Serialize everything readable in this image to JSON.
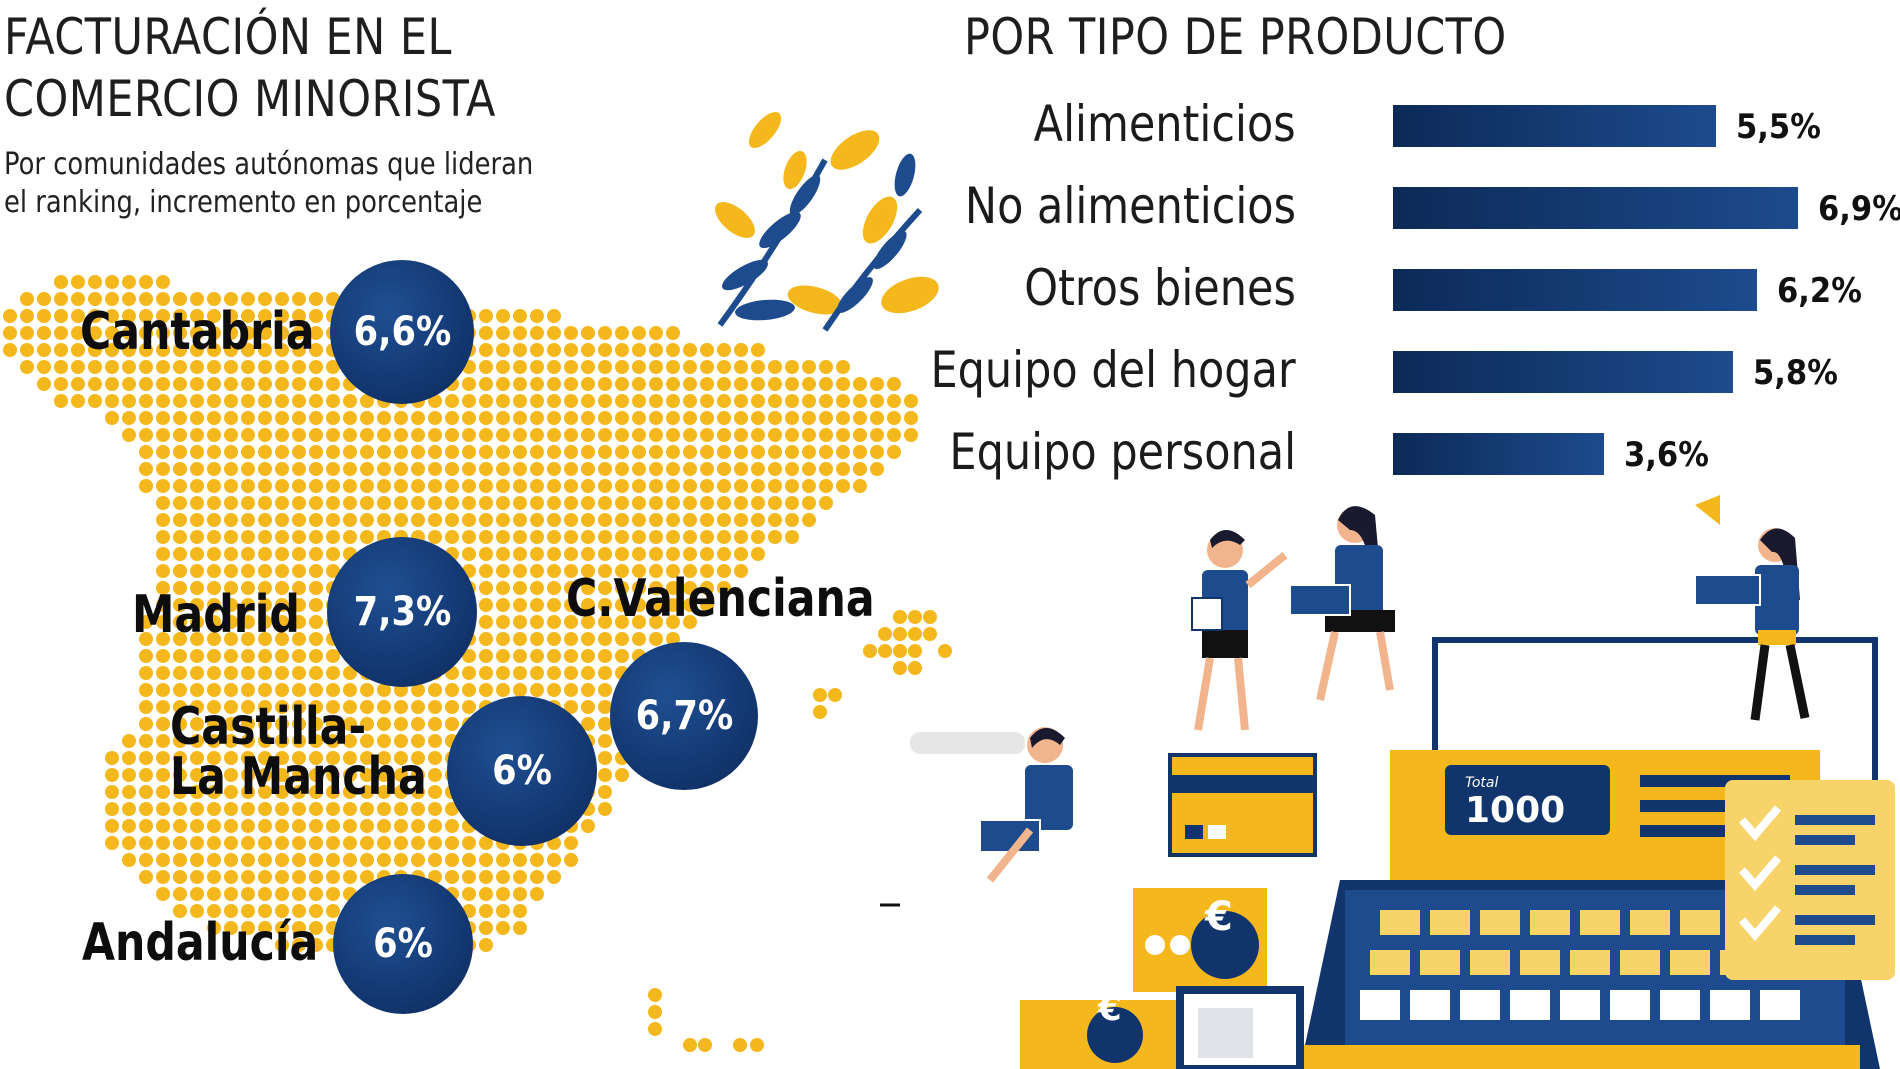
{
  "left_panel": {
    "title_line1": "FACTURACIÓN EN EL",
    "title_line2": "COMERCIO MINORISTA",
    "subtitle_line1": "Por comunidades autónomas que lideran",
    "subtitle_line2": "el ranking, incremento en porcentaje"
  },
  "right_panel": {
    "title": "POR TIPO DE PRODUCTO"
  },
  "colors": {
    "navy": "#11346c",
    "yellow": "#f4b81d",
    "mid_blue": "#1d4b8d"
  },
  "chart_data": [
    {
      "type": "bar",
      "orientation": "horizontal",
      "title": "POR TIPO DE PRODUCTO",
      "categories": [
        "Alimenticios",
        "No alimenticios",
        "Otros bienes",
        "Equipo del hogar",
        "Equipo personal"
      ],
      "values": [
        5.5,
        6.9,
        6.2,
        5.8,
        3.6
      ],
      "value_labels": [
        "5,5%",
        "6,9%",
        "6,2%",
        "5,8%",
        "3,6%"
      ],
      "xlim": [
        0,
        6.9
      ],
      "grid": false,
      "legend": "none"
    },
    {
      "type": "map",
      "title": "FACTURACIÓN EN EL COMERCIO MINORISTA",
      "subtitle": "Por comunidades autónomas que lideran el ranking, incremento en porcentaje",
      "regions": [
        {
          "name": "Cantabria",
          "value": 6.6,
          "label": "6,6%"
        },
        {
          "name": "Madrid",
          "value": 7.3,
          "label": "7,3%"
        },
        {
          "name": "C.Valenciana",
          "value": 6.7,
          "label": "6,7%"
        },
        {
          "name": "Castilla-La Mancha",
          "value": 6.0,
          "label": "6%"
        },
        {
          "name": "Andalucía",
          "value": 6.0,
          "label": "6%"
        }
      ],
      "region_label_lines": {
        "castilla_line1": "Castilla-",
        "castilla_line2": "La Mancha"
      }
    }
  ],
  "illustration": {
    "register_total_label": "Total",
    "register_display": "1000",
    "currency_symbol": "€"
  }
}
